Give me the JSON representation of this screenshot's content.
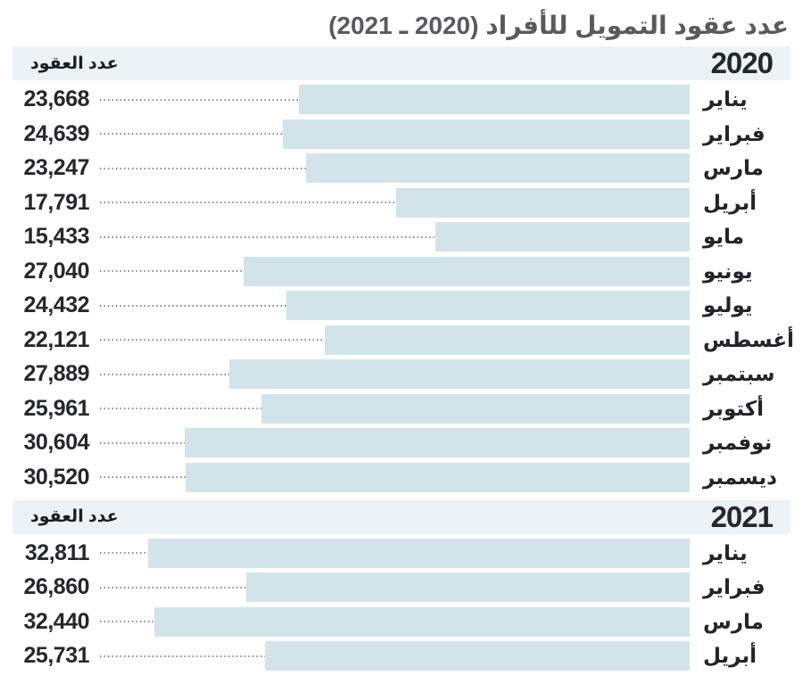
{
  "title": "عدد عقود التمويل للأفراد (2020 ـ 2021)",
  "colors": {
    "bar_fill": "#d2e4ea",
    "header_band": "#ecf2f6",
    "title_text": "#5a5a5d",
    "label_text": "#26272b",
    "leader_line": "#8d8d8d"
  },
  "chart_data": [
    {
      "type": "bar",
      "title": "2020",
      "orientation": "horizontal",
      "direction": "rtl",
      "value_axis_label": "عدد العقود",
      "categories": [
        "يناير",
        "فبراير",
        "مارس",
        "أبريل",
        "مايو",
        "يونيو",
        "يوليو",
        "أغسطس",
        "سبتمبر",
        "أكتوبر",
        "نوفمبر",
        "ديسمبر"
      ],
      "values": [
        23668,
        24639,
        23247,
        17791,
        15433,
        27040,
        24432,
        22121,
        27889,
        25961,
        30604,
        30520
      ],
      "xlim": [
        0,
        32811
      ],
      "grid": false,
      "legend": false
    },
    {
      "type": "bar",
      "title": "2021",
      "orientation": "horizontal",
      "direction": "rtl",
      "value_axis_label": "عدد العقود",
      "categories": [
        "يناير",
        "فبراير",
        "مارس",
        "أبريل"
      ],
      "values": [
        32811,
        26860,
        32440,
        25731
      ],
      "xlim": [
        0,
        32811
      ],
      "grid": false,
      "legend": false
    }
  ],
  "sections": [
    {
      "year": "2020",
      "header_label": "عدد العقود",
      "rows": [
        {
          "month": "يناير",
          "value_display": "23,668",
          "value": 23668
        },
        {
          "month": "فبراير",
          "value_display": "24,639",
          "value": 24639
        },
        {
          "month": "مارس",
          "value_display": "23,247",
          "value": 23247
        },
        {
          "month": "أبريل",
          "value_display": "17,791",
          "value": 17791
        },
        {
          "month": "مايو",
          "value_display": "15,433",
          "value": 15433
        },
        {
          "month": "يونيو",
          "value_display": "27,040",
          "value": 27040
        },
        {
          "month": "يوليو",
          "value_display": "24,432",
          "value": 24432
        },
        {
          "month": "أغسطس",
          "value_display": "22,121",
          "value": 22121
        },
        {
          "month": "سبتمبر",
          "value_display": "27,889",
          "value": 27889
        },
        {
          "month": "أكتوبر",
          "value_display": "25,961",
          "value": 25961
        },
        {
          "month": "نوفمبر",
          "value_display": "30,604",
          "value": 30604
        },
        {
          "month": "ديسمبر",
          "value_display": "30,520",
          "value": 30520
        }
      ]
    },
    {
      "year": "2021",
      "header_label": "عدد العقود",
      "rows": [
        {
          "month": "يناير",
          "value_display": "32,811",
          "value": 32811
        },
        {
          "month": "فبراير",
          "value_display": "26,860",
          "value": 26860
        },
        {
          "month": "مارس",
          "value_display": "32,440",
          "value": 32440
        },
        {
          "month": "أبريل",
          "value_display": "25,731",
          "value": 25731
        }
      ]
    }
  ]
}
